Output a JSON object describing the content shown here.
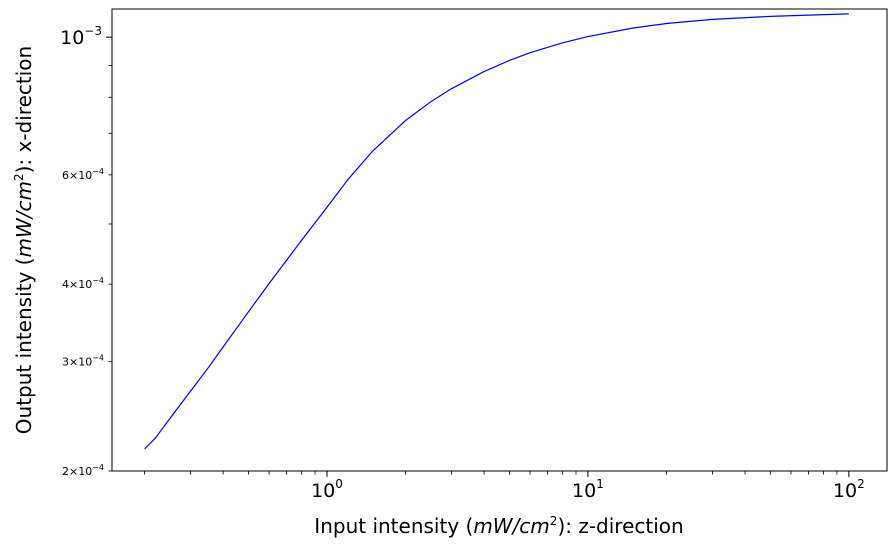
{
  "chart_data": {
    "type": "line",
    "xscale": "log",
    "yscale": "log",
    "xlim": [
      0.15,
      140
    ],
    "ylim": [
      0.0002,
      0.00111
    ],
    "xlabel": {
      "prefix": "Input intensity (",
      "math": "mW/cm",
      "exp": "2",
      "suffix": "): z-direction"
    },
    "ylabel": {
      "prefix": "Output intensity (",
      "math": "mW/cm",
      "exp": "2",
      "suffix": "): x-direction"
    },
    "xticks_major": [
      {
        "value": 1,
        "base": "10",
        "exp": "0"
      },
      {
        "value": 10,
        "base": "10",
        "exp": "1"
      },
      {
        "value": 100,
        "base": "10",
        "exp": "2"
      }
    ],
    "yticks_major": [
      {
        "value": 0.001,
        "base": "10",
        "exp": "−3"
      }
    ],
    "yticks_minor_labeled": [
      {
        "value": 0.0002,
        "mant": "2",
        "base": "10",
        "exp": "−4"
      },
      {
        "value": 0.0003,
        "mant": "3",
        "base": "10",
        "exp": "−4"
      },
      {
        "value": 0.0004,
        "mant": "4",
        "base": "10",
        "exp": "−4"
      },
      {
        "value": 0.0006,
        "mant": "6",
        "base": "10",
        "exp": "−4"
      }
    ],
    "yticks_minor_unlabeled": [
      0.0005,
      0.0007,
      0.0008,
      0.0009
    ],
    "grid": false,
    "legend": "none",
    "series": [
      {
        "color": "#0000ff",
        "x": [
          0.2,
          0.22,
          0.25,
          0.3,
          0.35,
          0.4,
          0.5,
          0.6,
          0.7,
          0.8,
          1.0,
          1.2,
          1.5,
          2.0,
          2.5,
          3.0,
          4.0,
          5.0,
          6.0,
          8.0,
          10,
          15,
          20,
          30,
          50,
          70,
          100
        ],
        "y": [
          0.000217,
          0.000226,
          0.000243,
          0.000269,
          0.000293,
          0.000317,
          0.000361,
          0.000401,
          0.000437,
          0.000471,
          0.000532,
          0.000589,
          0.000656,
          0.000734,
          0.000787,
          0.000826,
          0.00088,
          0.000917,
          0.000944,
          0.000979,
          0.001002,
          0.001035,
          0.001052,
          0.001068,
          0.00108,
          0.001085,
          0.00109
        ]
      }
    ]
  }
}
